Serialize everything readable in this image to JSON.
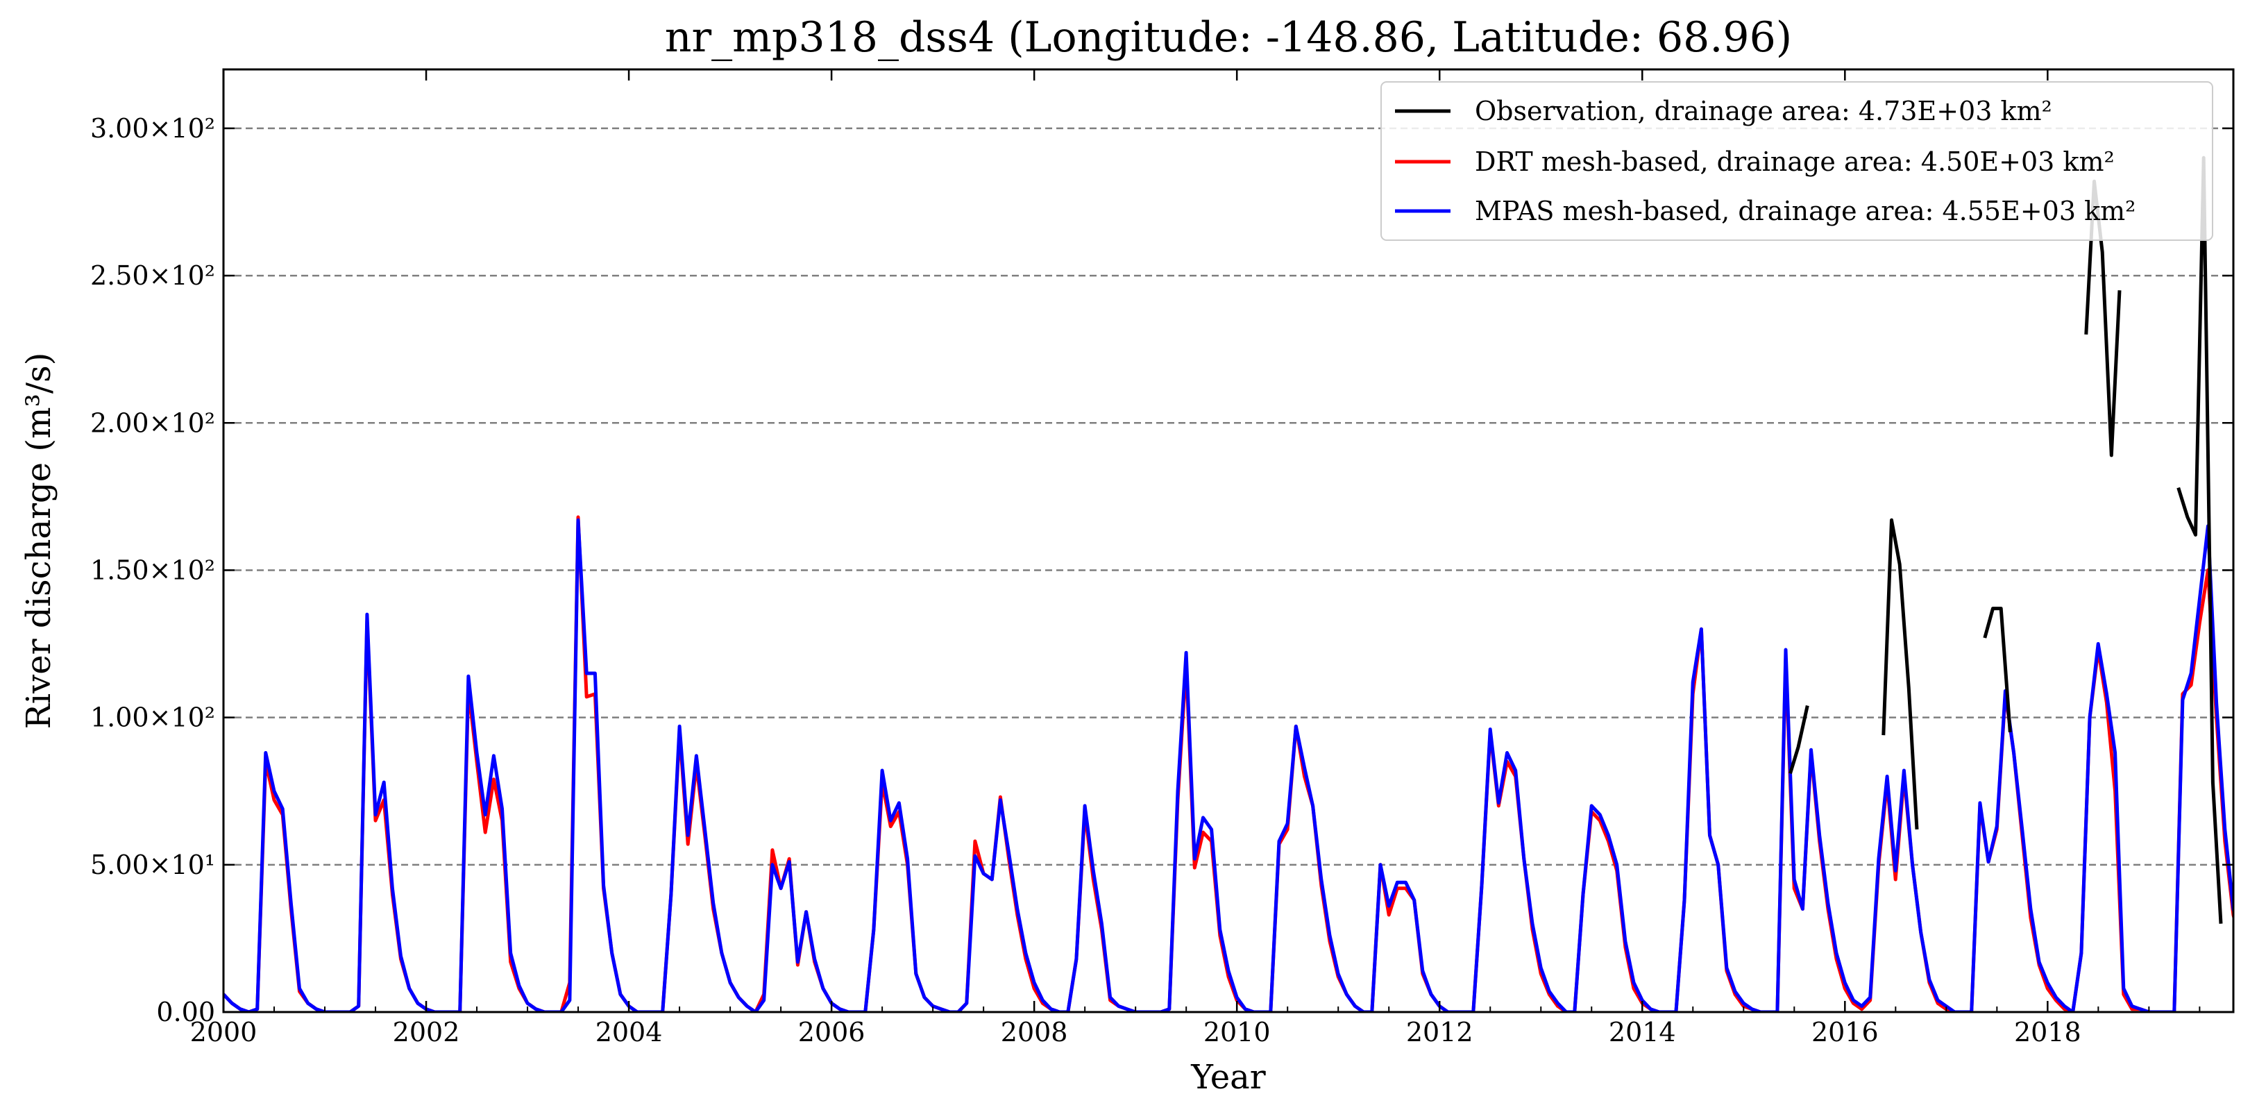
{
  "chart_data": {
    "type": "line",
    "title": "nr_mp318_dss4 (Longitude: -148.86, Latitude: 68.96)",
    "xlabel": "Year",
    "ylabel": "River discharge (m³/s)",
    "xlim": [
      2000.0,
      2019.833
    ],
    "ylim": [
      0,
      320
    ],
    "x_ticks": [
      2000,
      2002,
      2004,
      2006,
      2008,
      2010,
      2012,
      2014,
      2016,
      2018
    ],
    "x_tick_labels": [
      "2000",
      "2002",
      "2004",
      "2006",
      "2008",
      "2010",
      "2012",
      "2014",
      "2016",
      "2018"
    ],
    "y_ticks": [
      0,
      50,
      100,
      150,
      200,
      250,
      300
    ],
    "y_tick_labels": [
      "0.00",
      "5.00×10¹",
      "1.00×10²",
      "1.50×10²",
      "2.00×10²",
      "2.50×10²",
      "3.00×10²"
    ],
    "grid": "horizontal dashed",
    "legend_position": "top-right",
    "series": [
      {
        "name": "Observation, drainage area: 4.73E+03 km²",
        "color": "#000000",
        "segments": [
          {
            "x": [
              2015.46,
              2015.54,
              2015.63
            ],
            "y": [
              81,
              90,
              104
            ]
          },
          {
            "x": [
              2016.38,
              2016.46,
              2016.54,
              2016.63,
              2016.71
            ],
            "y": [
              94,
              167,
              152,
              110,
              62
            ]
          },
          {
            "x": [
              2017.38,
              2017.46,
              2017.54,
              2017.63
            ],
            "y": [
              127,
              137,
              137,
              95
            ]
          },
          {
            "x": [
              2018.38,
              2018.46,
              2018.54,
              2018.63,
              2018.71
            ],
            "y": [
              230,
              282,
              258,
              189,
              245
            ]
          },
          {
            "x": [
              2019.29,
              2019.38,
              2019.46,
              2019.54,
              2019.63,
              2019.71
            ],
            "y": [
              178,
              168,
              162,
              290,
              78,
              30
            ]
          }
        ]
      },
      {
        "name": "DRT mesh-based, drainage area: 4.50E+03 km²",
        "color": "#ff0000",
        "x_start": 2000.0,
        "x_step": 0.08333,
        "values": [
          6,
          3,
          1,
          0,
          1,
          85,
          72,
          67,
          35,
          7,
          3,
          1,
          0,
          0,
          0,
          0,
          2,
          133,
          65,
          72,
          40,
          18,
          8,
          3,
          1,
          0,
          0,
          0,
          0,
          110,
          85,
          61,
          79,
          65,
          17,
          8,
          3,
          1,
          0,
          0,
          0,
          10,
          168,
          107,
          108,
          42,
          20,
          6,
          2,
          0,
          0,
          0,
          0,
          40,
          95,
          57,
          84,
          60,
          35,
          20,
          10,
          5,
          2,
          0,
          6,
          55,
          42,
          52,
          16,
          34,
          17,
          8,
          3,
          1,
          0,
          0,
          0,
          28,
          78,
          63,
          68,
          50,
          13,
          5,
          2,
          1,
          0,
          0,
          3,
          58,
          47,
          45,
          73,
          52,
          33,
          18,
          8,
          3,
          1,
          0,
          0,
          18,
          68,
          45,
          28,
          4,
          2,
          1,
          0,
          0,
          0,
          0,
          1,
          72,
          118,
          49,
          61,
          58,
          26,
          12,
          4,
          1,
          0,
          0,
          0,
          57,
          62,
          97,
          80,
          70,
          43,
          24,
          12,
          6,
          2,
          0,
          0,
          50,
          33,
          42,
          42,
          38,
          13,
          6,
          2,
          0,
          0,
          0,
          0,
          43,
          95,
          70,
          85,
          80,
          52,
          28,
          13,
          6,
          2,
          0,
          0,
          40,
          68,
          65,
          58,
          48,
          22,
          8,
          3,
          1,
          0,
          0,
          0,
          38,
          108,
          130,
          60,
          50,
          14,
          6,
          2,
          1,
          0,
          0,
          0,
          120,
          42,
          35,
          88,
          58,
          35,
          18,
          8,
          3,
          1,
          4,
          50,
          78,
          45,
          80,
          50,
          27,
          10,
          3,
          1,
          0,
          0,
          0,
          70,
          51,
          62,
          108,
          88,
          60,
          32,
          16,
          8,
          4,
          1,
          0,
          20,
          100,
          123,
          105,
          75,
          6,
          1,
          1,
          0,
          0,
          0,
          0,
          108,
          111,
          132,
          150,
          100,
          58,
          33,
          22
        ]
      },
      {
        "name": "MPAS mesh-based, drainage area: 4.55E+03 km²",
        "color": "#0000ff",
        "x_start": 2000.0,
        "x_step": 0.08333,
        "values": [
          6,
          3,
          1,
          0,
          1,
          88,
          75,
          69,
          37,
          8,
          3,
          1,
          0,
          0,
          0,
          0,
          2,
          135,
          67,
          78,
          42,
          19,
          8,
          3,
          1,
          0,
          0,
          0,
          0,
          114,
          88,
          67,
          87,
          69,
          20,
          9,
          3,
          1,
          0,
          0,
          0,
          4,
          167,
          115,
          115,
          43,
          20,
          6,
          2,
          0,
          0,
          0,
          0,
          40,
          97,
          60,
          87,
          62,
          37,
          20,
          10,
          5,
          2,
          0,
          4,
          50,
          42,
          51,
          17,
          34,
          18,
          8,
          3,
          1,
          0,
          0,
          0,
          28,
          82,
          65,
          71,
          52,
          13,
          5,
          2,
          1,
          0,
          0,
          3,
          53,
          47,
          45,
          72,
          54,
          35,
          20,
          10,
          4,
          1,
          0,
          0,
          18,
          70,
          48,
          30,
          5,
          2,
          1,
          0,
          0,
          0,
          0,
          1,
          75,
          122,
          52,
          66,
          62,
          28,
          14,
          5,
          1,
          0,
          0,
          0,
          58,
          64,
          97,
          83,
          70,
          45,
          26,
          13,
          6,
          2,
          0,
          0,
          50,
          36,
          44,
          44,
          38,
          14,
          6,
          2,
          0,
          0,
          0,
          0,
          43,
          96,
          71,
          88,
          82,
          52,
          30,
          15,
          7,
          3,
          0,
          0,
          40,
          70,
          67,
          60,
          50,
          24,
          10,
          4,
          1,
          0,
          0,
          0,
          38,
          112,
          130,
          60,
          50,
          15,
          7,
          3,
          1,
          0,
          0,
          0,
          123,
          45,
          35,
          89,
          60,
          37,
          20,
          10,
          4,
          2,
          5,
          52,
          80,
          48,
          82,
          50,
          27,
          11,
          4,
          2,
          0,
          0,
          0,
          71,
          51,
          63,
          109,
          88,
          62,
          35,
          17,
          10,
          5,
          2,
          0,
          20,
          100,
          125,
          108,
          88,
          8,
          2,
          1,
          0,
          0,
          0,
          0,
          106,
          115,
          140,
          165,
          105,
          62,
          35,
          25
        ]
      }
    ]
  }
}
